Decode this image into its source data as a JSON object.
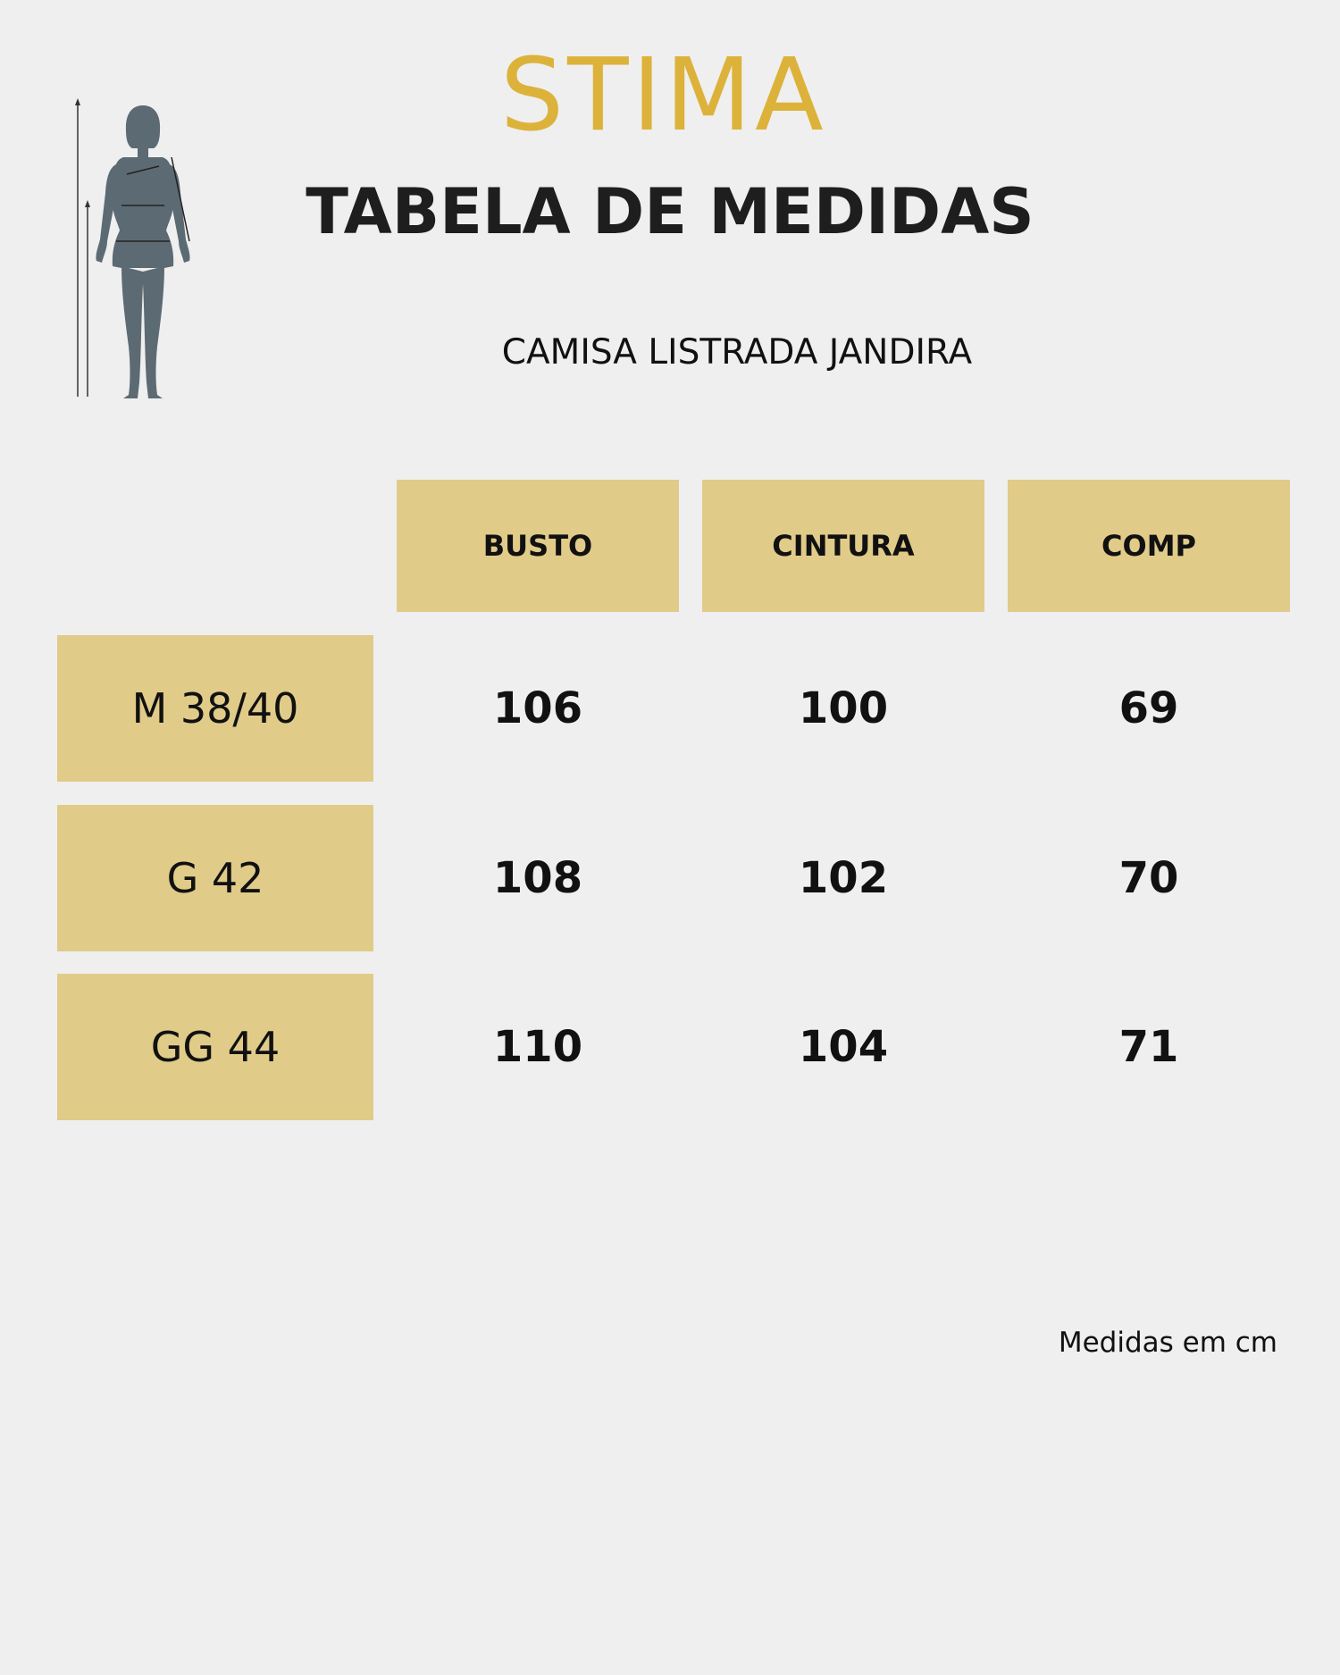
{
  "brand": {
    "name": "STIMA",
    "color": "#dcb23a"
  },
  "title": "TABELA DE MEDIDAS",
  "product": "CAMISA LISTRADA JANDIRA",
  "figure_icon": "body-measurement-silhouette-icon",
  "table": {
    "columns": [
      "BUSTO",
      "CINTURA",
      "COMP"
    ],
    "rows": [
      {
        "size": "M 38/40",
        "values": [
          "106",
          "100",
          "69"
        ]
      },
      {
        "size": "G 42",
        "values": [
          "108",
          "102",
          "70"
        ]
      },
      {
        "size": "GG 44",
        "values": [
          "110",
          "104",
          "71"
        ]
      }
    ],
    "cell_color": "#e1cb89"
  },
  "note": "Medidas em cm"
}
